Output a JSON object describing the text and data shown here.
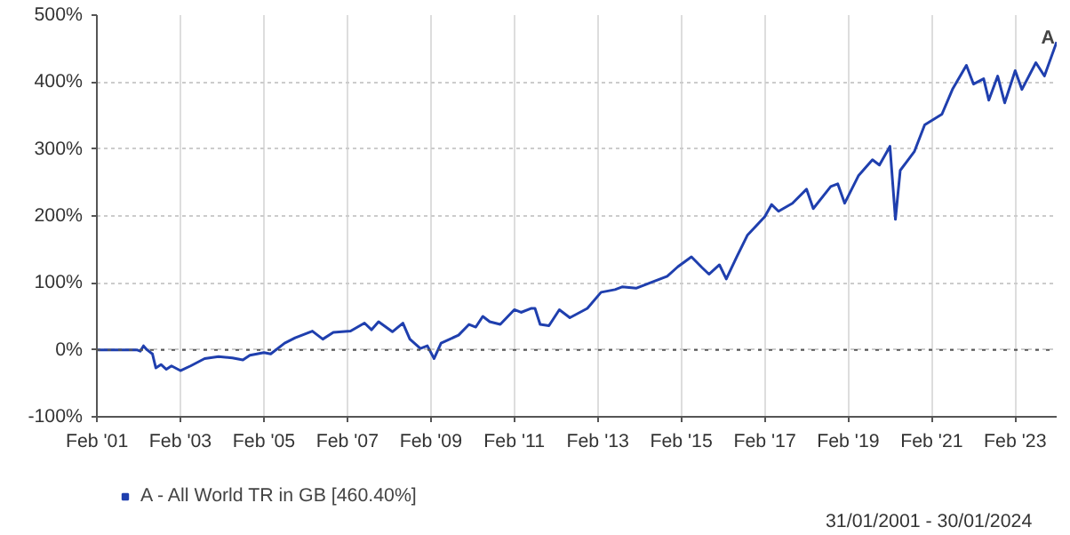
{
  "chart_data": {
    "type": "line",
    "x": [
      "2001-02-01",
      "2002-01-15",
      "2002-02-15",
      "2002-03-15",
      "2002-04-15",
      "2002-06-01",
      "2002-07-01",
      "2002-08-15",
      "2002-10-01",
      "2002-11-15",
      "2003-02-01",
      "2003-05-01",
      "2003-09-01",
      "2004-01-01",
      "2004-05-01",
      "2004-08-01",
      "2004-10-01",
      "2005-02-01",
      "2005-04-01",
      "2005-08-01",
      "2005-11-01",
      "2006-04-01",
      "2006-07-01",
      "2006-10-01",
      "2007-03-01",
      "2007-07-01",
      "2007-09-01",
      "2007-11-01",
      "2008-03-01",
      "2008-06-01",
      "2008-08-01",
      "2008-11-01",
      "2009-01-01",
      "2009-03-01",
      "2009-05-01",
      "2009-10-01",
      "2010-01-01",
      "2010-03-01",
      "2010-05-01",
      "2010-07-01",
      "2010-10-01",
      "2011-02-01",
      "2011-04-01",
      "2011-07-01",
      "2011-08-01",
      "2011-09-15",
      "2011-12-01",
      "2012-03-01",
      "2012-06-01",
      "2012-11-01",
      "2013-03-01",
      "2013-07-01",
      "2013-09-01",
      "2014-01-01",
      "2014-06-01",
      "2014-10-01",
      "2015-01-01",
      "2015-05-01",
      "2015-08-01",
      "2015-10-01",
      "2016-01-01",
      "2016-03-01",
      "2016-06-01",
      "2016-09-01",
      "2017-02-01",
      "2017-04-01",
      "2017-06-01",
      "2017-10-01",
      "2018-02-01",
      "2018-04-01",
      "2018-09-01",
      "2018-11-01",
      "2019-01-01",
      "2019-05-01",
      "2019-09-01",
      "2019-11-01",
      "2020-02-01",
      "2020-03-20",
      "2020-05-01",
      "2020-09-01",
      "2020-12-01",
      "2021-05-01",
      "2021-08-01",
      "2021-12-01",
      "2022-02-01",
      "2022-05-01",
      "2022-06-15",
      "2022-09-01",
      "2022-11-01",
      "2023-02-01",
      "2023-04-01",
      "2023-08-01",
      "2023-10-15",
      "2024-01-30"
    ],
    "series": [
      {
        "name": "A - All World TR in GB [460.40%]",
        "color": "#1f3fae",
        "values": [
          0,
          0,
          -2,
          6,
          0,
          -6,
          -27,
          -22,
          -29,
          -24,
          -31,
          -24,
          -13,
          -10,
          -12,
          -15,
          -8,
          -4,
          -6,
          10,
          18,
          28,
          16,
          26,
          28,
          40,
          30,
          42,
          27,
          40,
          16,
          2,
          6,
          -13,
          10,
          22,
          38,
          34,
          50,
          42,
          38,
          60,
          56,
          62,
          62,
          38,
          36,
          60,
          48,
          62,
          86,
          90,
          94,
          92,
          102,
          110,
          124,
          139,
          123,
          113,
          127,
          106,
          139,
          171,
          199,
          217,
          207,
          219,
          240,
          211,
          244,
          248,
          219,
          260,
          284,
          276,
          304,
          195,
          268,
          296,
          336,
          352,
          389,
          425,
          397,
          405,
          373,
          409,
          369,
          417,
          389,
          429,
          409,
          460
        ]
      }
    ],
    "xlim": [
      "2001-01-31",
      "2024-01-30"
    ],
    "xticks": [
      {
        "value": "2001-02-01",
        "label": "Feb '01"
      },
      {
        "value": "2003-02-01",
        "label": "Feb '03"
      },
      {
        "value": "2005-02-01",
        "label": "Feb '05"
      },
      {
        "value": "2007-02-01",
        "label": "Feb '07"
      },
      {
        "value": "2009-02-01",
        "label": "Feb '09"
      },
      {
        "value": "2011-02-01",
        "label": "Feb '11"
      },
      {
        "value": "2013-02-01",
        "label": "Feb '13"
      },
      {
        "value": "2015-02-01",
        "label": "Feb '15"
      },
      {
        "value": "2017-02-01",
        "label": "Feb '17"
      },
      {
        "value": "2019-02-01",
        "label": "Feb '19"
      },
      {
        "value": "2021-02-01",
        "label": "Feb '21"
      },
      {
        "value": "2023-02-01",
        "label": "Feb '23"
      }
    ],
    "ylim": [
      -100,
      500
    ],
    "yticks": [
      {
        "value": -100,
        "label": "-100%"
      },
      {
        "value": 0,
        "label": "0%"
      },
      {
        "value": 100,
        "label": "100%"
      },
      {
        "value": 200,
        "label": "200%"
      },
      {
        "value": 300,
        "label": "300%"
      },
      {
        "value": 400,
        "label": "400%"
      },
      {
        "value": 500,
        "label": "500%"
      }
    ],
    "grid": true,
    "ref_lines": [
      {
        "axis": "y",
        "value": 0,
        "color": "#555555",
        "line_style": "dotted"
      }
    ],
    "legend": "bottom left",
    "annotations": [
      {
        "text": "A",
        "x": "2024-01-30",
        "y": 460
      },
      "31/01/2001 - 30/01/2024"
    ]
  }
}
